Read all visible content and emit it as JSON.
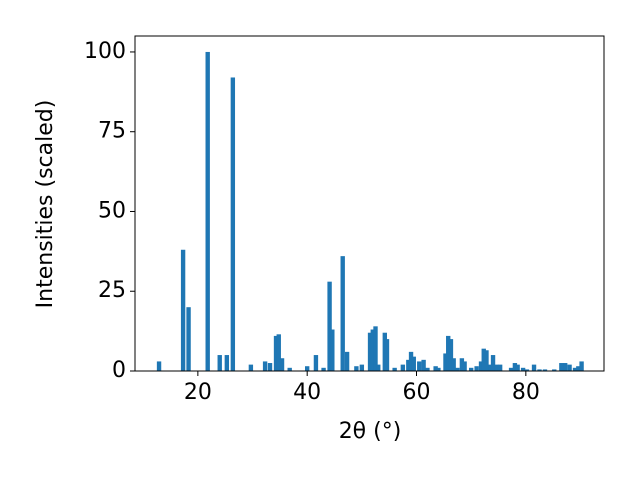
{
  "chart_data": {
    "type": "bar",
    "xlabel": "2θ (°)",
    "ylabel": "Intensities (scaled)",
    "color": "#1f77b4",
    "x": [
      12.9,
      17.3,
      18.3,
      21.8,
      24.0,
      25.3,
      26.4,
      29.7,
      32.3,
      33.2,
      34.3,
      34.8,
      35.4,
      36.8,
      40.0,
      41.6,
      43.0,
      44.1,
      44.6,
      46.5,
      47.3,
      49.0,
      50.0,
      51.5,
      52.0,
      52.5,
      53.0,
      54.2,
      54.6,
      56.0,
      57.5,
      58.5,
      59.0,
      59.5,
      60.5,
      61.3,
      62.0,
      63.5,
      64.0,
      65.3,
      65.8,
      66.3,
      66.8,
      67.5,
      68.3,
      68.8,
      70.0,
      71.0,
      71.8,
      72.3,
      72.8,
      73.5,
      74.0,
      74.6,
      75.3,
      77.3,
      78.0,
      78.5,
      79.5,
      80.2,
      81.5,
      82.5,
      83.5,
      85.2,
      86.5,
      87.2,
      88.0,
      89.0,
      89.6,
      90.2
    ],
    "values": [
      3,
      38,
      20,
      100,
      5,
      5,
      92,
      2,
      3,
      2.5,
      11,
      11.5,
      4,
      1,
      1.5,
      5,
      1,
      28,
      13,
      36,
      6,
      1.5,
      2,
      12,
      13,
      14,
      2,
      12,
      10,
      1,
      2,
      3.5,
      6,
      4.5,
      3,
      3.5,
      1,
      1.5,
      1,
      5.5,
      11,
      10,
      4,
      1,
      4,
      3,
      1,
      1.5,
      3,
      7,
      6.5,
      2,
      5,
      2,
      2,
      1,
      2.5,
      2,
      1,
      0.5,
      2,
      0.5,
      0.5,
      0.5,
      2.5,
      2.5,
      2,
      1,
      1.5,
      3
    ],
    "xlim": [
      8.5,
      94.3
    ],
    "xticks": [
      20,
      40,
      60,
      80
    ],
    "ylim": [
      0,
      105
    ],
    "yticks": [
      0,
      25,
      50,
      75,
      100
    ],
    "grid": false
  }
}
